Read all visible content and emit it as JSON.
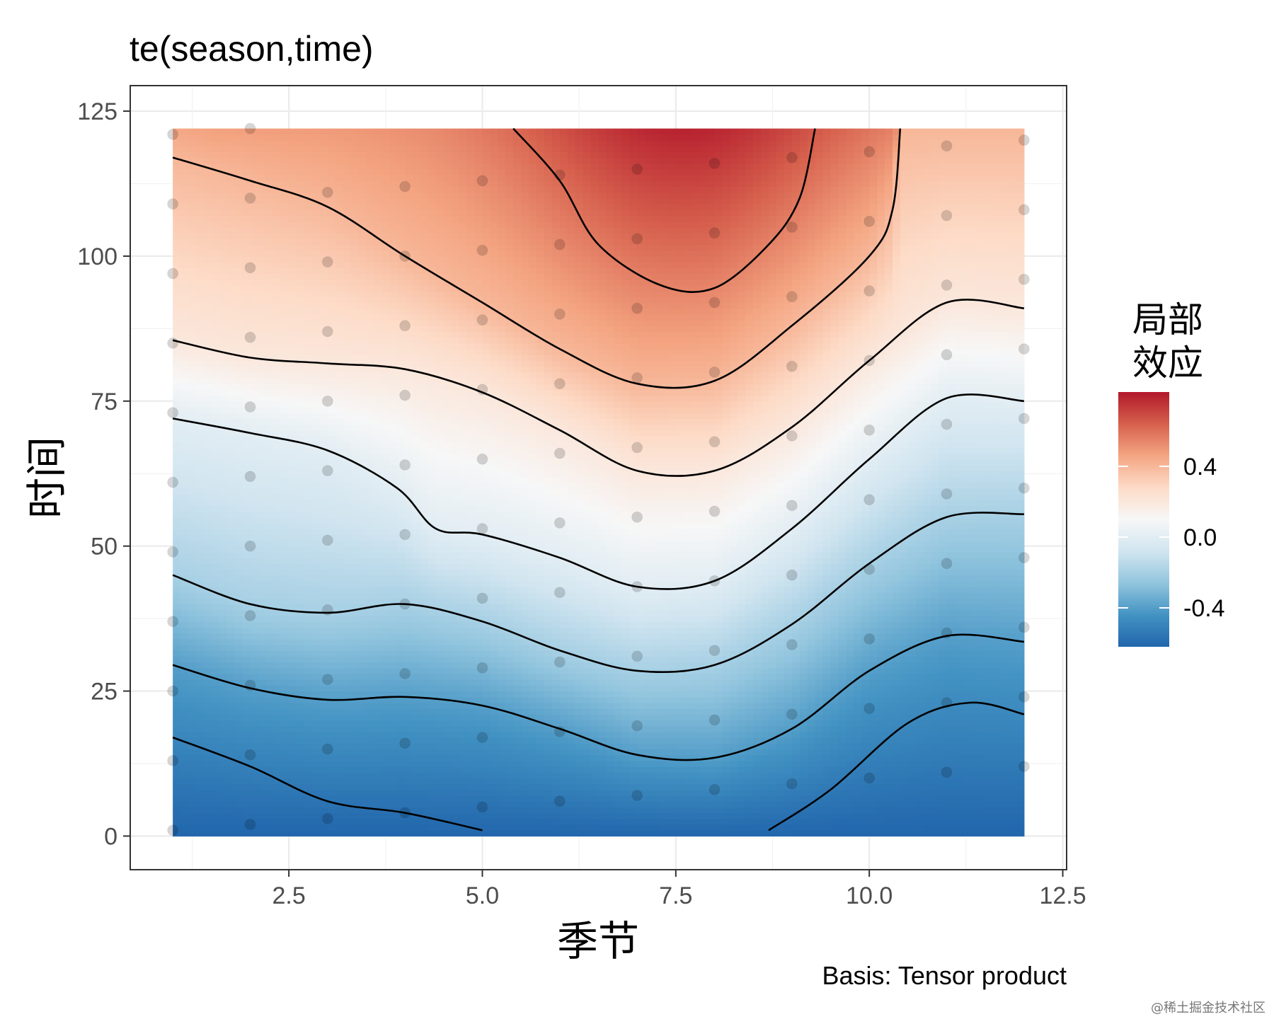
{
  "watermark": "@稀土掘金技术社区",
  "chart_data": {
    "type": "heatmap",
    "title": "te(season,time)",
    "xlabel": "季节",
    "ylabel": "时间",
    "caption": "Basis: Tensor product",
    "xlim": [
      0.45,
      12.55
    ],
    "ylim": [
      -5.8,
      129.4
    ],
    "x_ticks": [
      2.5,
      5.0,
      7.5,
      10.0,
      12.5
    ],
    "x_tick_labels": [
      "2.5",
      "5.0",
      "7.5",
      "10.0",
      "12.5"
    ],
    "y_ticks": [
      0,
      25,
      50,
      75,
      100,
      125
    ],
    "y_tick_labels": [
      "0",
      "25",
      "50",
      "75",
      "100",
      "125"
    ],
    "surface_extent": {
      "x": [
        1,
        12
      ],
      "y": [
        0,
        122
      ]
    },
    "legend": {
      "title": [
        "局部",
        "效应"
      ],
      "range": [
        -0.62,
        0.82
      ],
      "ticks": [
        0.4,
        0.0,
        -0.4
      ],
      "tick_labels": [
        "0.4",
        "0.0",
        "-0.4"
      ],
      "colors": [
        "#2166ac",
        "#4393c3",
        "#92c5de",
        "#d1e5f0",
        "#f7f7f7",
        "#fddbc7",
        "#f4a582",
        "#d6604d",
        "#b2182b"
      ]
    },
    "contours": [
      {
        "name": "level-1",
        "points": [
          [
            1,
            17
          ],
          [
            2,
            12
          ],
          [
            3,
            6
          ],
          [
            4,
            4
          ],
          [
            5,
            1
          ]
        ]
      },
      {
        "name": "level-2",
        "points": [
          [
            8.7,
            1
          ],
          [
            9.5,
            8
          ],
          [
            10.5,
            19.5
          ],
          [
            11.3,
            23
          ],
          [
            12,
            21
          ]
        ]
      },
      {
        "name": "level-3",
        "points": [
          [
            1,
            29.5
          ],
          [
            2,
            25.5
          ],
          [
            3,
            23.5
          ],
          [
            4,
            24
          ],
          [
            5,
            22.5
          ],
          [
            6,
            18.5
          ],
          [
            7,
            14
          ],
          [
            8,
            13.5
          ],
          [
            9,
            18.5
          ],
          [
            10,
            28.5
          ],
          [
            11,
            34.5
          ],
          [
            12,
            33.5
          ]
        ]
      },
      {
        "name": "level-4",
        "points": [
          [
            1,
            45
          ],
          [
            2,
            40
          ],
          [
            3,
            38.5
          ],
          [
            4,
            40
          ],
          [
            5,
            37
          ],
          [
            6,
            32
          ],
          [
            7,
            28.5
          ],
          [
            8,
            29.5
          ],
          [
            9,
            36.5
          ],
          [
            10,
            47
          ],
          [
            11,
            55
          ],
          [
            12,
            55.5
          ]
        ]
      },
      {
        "name": "level-5",
        "points": [
          [
            1,
            72
          ],
          [
            2,
            69.5
          ],
          [
            3,
            66.5
          ],
          [
            3.9,
            60
          ],
          [
            4.4,
            53
          ],
          [
            5,
            52
          ],
          [
            6,
            48
          ],
          [
            7,
            43
          ],
          [
            8,
            44
          ],
          [
            9,
            53
          ],
          [
            10,
            65
          ],
          [
            11,
            75.5
          ],
          [
            12,
            75
          ]
        ]
      },
      {
        "name": "level-6",
        "points": [
          [
            1,
            85.5
          ],
          [
            2,
            82.5
          ],
          [
            3,
            81.5
          ],
          [
            4,
            80.5
          ],
          [
            5,
            76.5
          ],
          [
            6,
            70
          ],
          [
            7,
            63
          ],
          [
            8,
            63
          ],
          [
            9,
            70.5
          ],
          [
            10,
            82
          ],
          [
            11,
            92
          ],
          [
            12,
            91
          ]
        ]
      },
      {
        "name": "level-7",
        "points": [
          [
            1,
            117
          ],
          [
            2,
            113
          ],
          [
            3,
            108.5
          ],
          [
            4,
            100
          ],
          [
            5,
            92
          ],
          [
            6,
            84
          ],
          [
            7,
            78
          ],
          [
            8,
            78.5
          ],
          [
            9,
            88
          ],
          [
            10,
            100
          ],
          [
            10.3,
            108
          ],
          [
            10.4,
            122
          ]
        ]
      },
      {
        "name": "level-8",
        "points": [
          [
            5.4,
            122
          ],
          [
            6,
            113
          ],
          [
            6.5,
            102
          ],
          [
            7.3,
            95
          ],
          [
            8,
            94.5
          ],
          [
            8.7,
            102
          ],
          [
            9.1,
            110
          ],
          [
            9.3,
            122
          ]
        ]
      }
    ],
    "points": {
      "x": [
        1,
        2,
        3,
        4,
        5,
        6,
        7,
        8,
        9,
        10,
        11,
        12
      ],
      "y_by_x": [
        [
          1,
          13,
          25,
          37,
          49,
          61,
          73,
          85,
          97,
          109,
          121
        ],
        [
          2,
          14,
          26,
          38,
          50,
          62,
          74,
          86,
          98,
          110,
          122
        ],
        [
          3,
          15,
          27,
          39,
          51,
          63,
          75,
          87,
          99,
          111
        ],
        [
          4,
          16,
          28,
          40,
          52,
          64,
          76,
          88,
          100,
          112
        ],
        [
          5,
          17,
          29,
          41,
          53,
          65,
          77,
          89,
          101,
          113
        ],
        [
          6,
          18,
          30,
          42,
          54,
          66,
          78,
          90,
          102,
          114
        ],
        [
          7,
          19,
          31,
          43,
          55,
          67,
          79,
          91,
          103,
          115
        ],
        [
          8,
          20,
          32,
          44,
          56,
          68,
          80,
          92,
          104,
          116
        ],
        [
          9,
          21,
          33,
          45,
          57,
          69,
          81,
          93,
          105,
          117
        ],
        [
          10,
          22,
          34,
          46,
          58,
          70,
          82,
          94,
          106,
          118
        ],
        [
          11,
          23,
          35,
          47,
          59,
          71,
          83,
          95,
          107,
          119
        ],
        [
          12,
          24,
          36,
          48,
          60,
          72,
          84,
          96,
          108,
          120
        ]
      ]
    }
  }
}
